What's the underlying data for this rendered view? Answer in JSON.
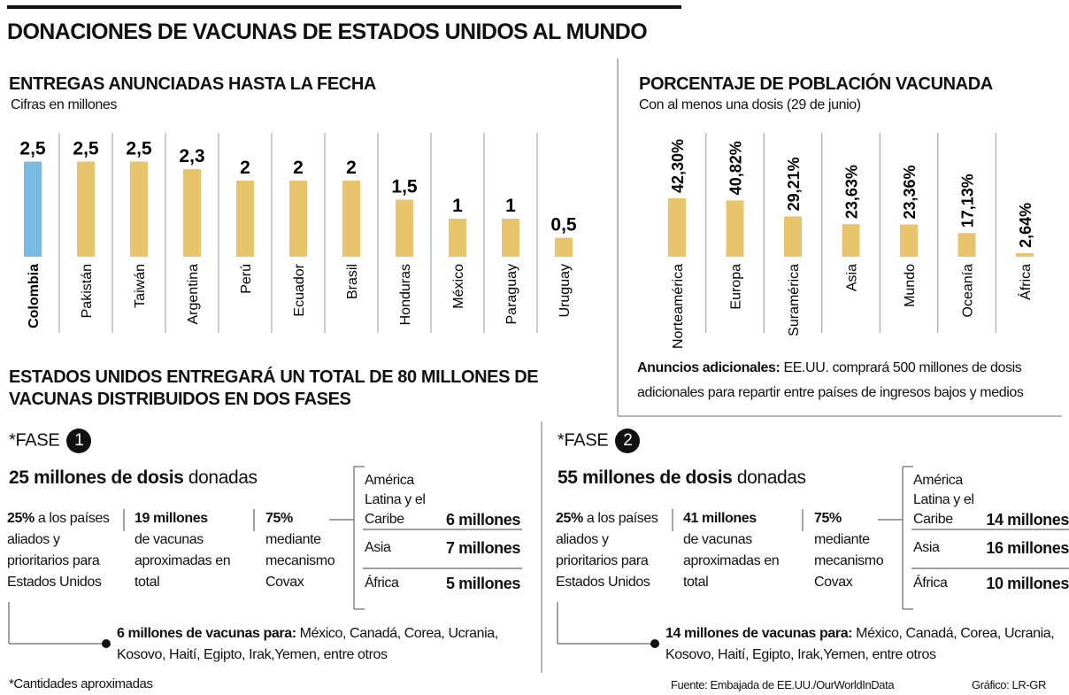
{
  "header": {
    "title": "DONACIONES DE VACUNAS DE ESTADOS UNIDOS AL MUNDO"
  },
  "chart_data": [
    {
      "type": "bar",
      "title": "ENTREGAS ANUNCIADAS HASTA LA FECHA",
      "subtitle": "Cifras en millones",
      "categories": [
        "Colombia",
        "Pakistán",
        "Taiwán",
        "Argentina",
        "Perú",
        "Ecuador",
        "Brasil",
        "Honduras",
        "México",
        "Paraguay",
        "Uruguay"
      ],
      "values": [
        2.5,
        2.5,
        2.5,
        2.3,
        2,
        2,
        2,
        1.5,
        1,
        1,
        0.5
      ],
      "value_labels": [
        "2,5",
        "2,5",
        "2,5",
        "2,3",
        "2",
        "2",
        "2",
        "1,5",
        "1",
        "1",
        "0,5"
      ],
      "colors": [
        "#7bbbe3",
        "#e8c46c",
        "#e8c46c",
        "#e8c46c",
        "#e8c46c",
        "#e8c46c",
        "#e8c46c",
        "#e8c46c",
        "#e8c46c",
        "#e8c46c",
        "#e8c46c"
      ]
    },
    {
      "type": "bar",
      "title": "PORCENTAJE DE POBLACIÓN VACUNADA",
      "subtitle": "Con al menos una dosis (29 de junio)",
      "categories": [
        "Norteamérica",
        "Europa",
        "Suramérica",
        "Asia",
        "Mundo",
        "Oceanía",
        "África"
      ],
      "values": [
        42.3,
        40.82,
        29.21,
        23.63,
        23.36,
        17.13,
        2.64
      ],
      "value_labels": [
        "42,30%",
        "40,82%",
        "29,21%",
        "23,63%",
        "23,36%",
        "17,13%",
        "2,64%"
      ],
      "colors": [
        "#e8c46c",
        "#e8c46c",
        "#e8c46c",
        "#e8c46c",
        "#e8c46c",
        "#e8c46c",
        "#e8c46c"
      ]
    }
  ],
  "additional": {
    "label": "Anuncios adicionales:",
    "text": "EE.UU. comprará 500 millones de dosis adicionales para repartir entre países de ingresos bajos y medios"
  },
  "total": {
    "title": "ESTADOS UNIDOS ENTREGARÁ UN TOTAL DE 80 MILLONES DE VACUNAS DISTRIBUIDOS EN DOS FASES"
  },
  "phases": [
    {
      "label": "*FASE",
      "number": "1",
      "doses": "25 millones de dosis",
      "doses_text": "donadas",
      "share": {
        "value": "25%",
        "text": "a los países aliados y prioritarios para Estados Unidos"
      },
      "total": {
        "value": "19 millones",
        "text": "de vacunas aproximadas en total"
      },
      "covax": {
        "value": "75%",
        "text": "mediante mecanismo Covax"
      },
      "regions": [
        {
          "name": "América Latina y el Caribe",
          "amount": "6 millones"
        },
        {
          "name": "Asia",
          "amount": "7 millones"
        },
        {
          "name": "África",
          "amount": "5 millones"
        }
      ],
      "recipients": {
        "label": "6 millones de vacunas para:",
        "text": "México, Canadá, Corea, Ucrania, Kosovo, Haití, Egipto, Irak,Yemen, entre otros"
      }
    },
    {
      "label": "*FASE",
      "number": "2",
      "doses": "55 millones de dosis",
      "doses_text": "donadas",
      "share": {
        "value": "25%",
        "text": "a los países aliados y prioritarios para Estados Unidos"
      },
      "total": {
        "value": "41 millones",
        "text": "de vacunas aproximadas en total"
      },
      "covax": {
        "value": "75%",
        "text": "mediante mecanismo Covax"
      },
      "regions": [
        {
          "name": "América Latina y el Caribe",
          "amount": "14 millones"
        },
        {
          "name": "Asia",
          "amount": "16 millones"
        },
        {
          "name": "África",
          "amount": "10 millones"
        }
      ],
      "recipients": {
        "label": "14 millones de vacunas para:",
        "text": "México, Canadá, Corea, Ucrania, Kosovo, Haití, Egipto, Irak,Yemen, entre otros"
      }
    }
  ],
  "footer": {
    "note": "*Cantidades aproximadas",
    "source": "Fuente: Embajada de EE.UU./OurWorldInData",
    "credit": "Gráfico: LR-GR"
  }
}
